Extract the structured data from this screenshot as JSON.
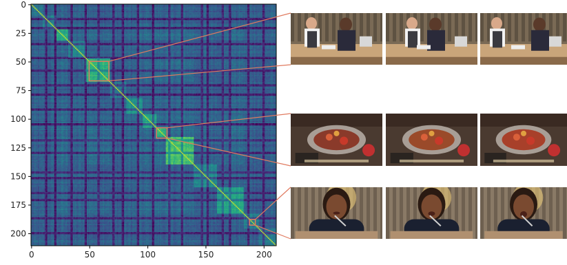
{
  "chart_data": {
    "type": "heatmap",
    "matrix_size": 211,
    "x_ticks": [
      0,
      50,
      100,
      150,
      200
    ],
    "y_ticks": [
      0,
      25,
      50,
      75,
      100,
      125,
      150,
      175,
      200
    ],
    "x_tick_labels": [
      "0",
      "50",
      "100",
      "150",
      "200"
    ],
    "y_tick_labels": [
      "0",
      "25",
      "50",
      "75",
      "100",
      "125",
      "150",
      "175",
      "200"
    ],
    "xlim": [
      0,
      211
    ],
    "ylim": [
      211,
      0
    ],
    "colormap": "viridis",
    "grid": false,
    "segments": [
      {
        "start": 0,
        "end": 10,
        "level": 0.32
      },
      {
        "start": 10,
        "end": 22,
        "level": 0.38
      },
      {
        "start": 22,
        "end": 32,
        "level": 0.55
      },
      {
        "start": 32,
        "end": 47,
        "level": 0.4
      },
      {
        "start": 47,
        "end": 68,
        "level": 0.62
      },
      {
        "start": 68,
        "end": 82,
        "level": 0.36
      },
      {
        "start": 82,
        "end": 96,
        "level": 0.45
      },
      {
        "start": 96,
        "end": 108,
        "level": 0.52
      },
      {
        "start": 108,
        "end": 116,
        "level": 0.6
      },
      {
        "start": 116,
        "end": 140,
        "level": 0.66
      },
      {
        "start": 140,
        "end": 160,
        "level": 0.44
      },
      {
        "start": 160,
        "end": 183,
        "level": 0.55
      },
      {
        "start": 183,
        "end": 196,
        "level": 0.4
      },
      {
        "start": 196,
        "end": 211,
        "level": 0.35
      }
    ],
    "dark_bands": [
      12,
      20,
      34,
      46,
      57,
      70,
      78,
      91,
      104,
      118,
      129,
      146,
      151,
      164,
      170,
      186,
      199
    ],
    "highlight_regions": [
      {
        "name": "region-1",
        "x_range": [
          50,
          67
        ],
        "y_range": [
          50,
          67
        ]
      },
      {
        "name": "region-2",
        "x_range": [
          108,
          117
        ],
        "y_range": [
          108,
          117
        ]
      },
      {
        "name": "region-3",
        "x_range": [
          188,
          193
        ],
        "y_range": [
          188,
          193
        ]
      }
    ]
  },
  "thumbnails": [
    {
      "row": 0,
      "scene": "kitchen",
      "frames": 3
    },
    {
      "row": 1,
      "scene": "bowl",
      "frames": 3
    },
    {
      "row": 2,
      "scene": "eating",
      "frames": 3
    }
  ],
  "colors": {
    "highlight_box": "#e07a5f",
    "connector": "#e07a5f",
    "diagonal": "#c8e020"
  }
}
